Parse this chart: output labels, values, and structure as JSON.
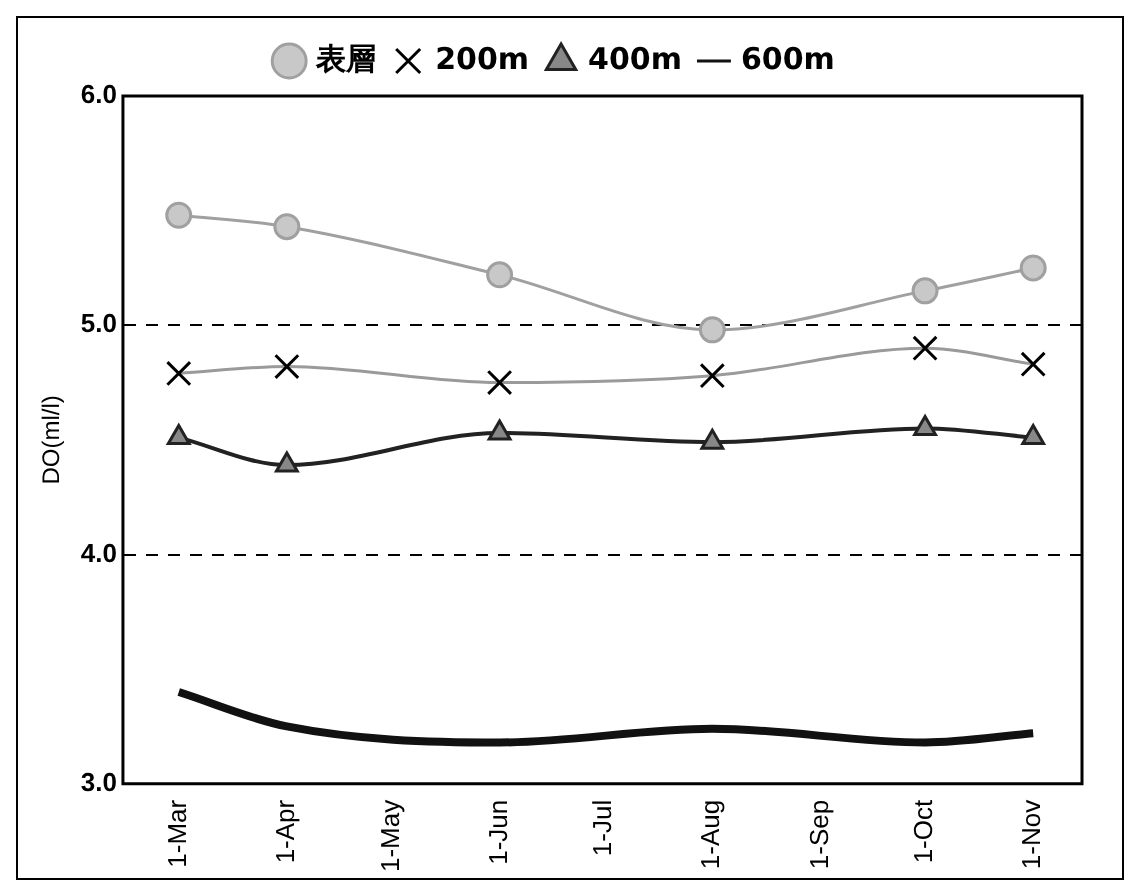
{
  "chart_data": {
    "type": "line",
    "ylabel": "DO(ml/l)",
    "x": [
      "--03-01",
      "--04-01",
      "--06-01",
      "--08-01",
      "--10-01",
      "--11-01"
    ],
    "series": [
      {
        "name": "表層",
        "color": "#a0a0a0",
        "marker": "circle",
        "values": [
          5.48,
          5.43,
          5.22,
          4.98,
          5.15,
          5.25
        ]
      },
      {
        "name": "200m",
        "color": "#9a9a9a",
        "marker": "cross",
        "values": [
          4.79,
          4.82,
          4.75,
          4.78,
          4.9,
          4.83
        ]
      },
      {
        "name": "400m",
        "color": "#222222",
        "marker": "triangle",
        "values": [
          4.51,
          4.39,
          4.53,
          4.49,
          4.55,
          4.51
        ]
      },
      {
        "name": "600m",
        "color": "#111111",
        "marker": "none",
        "values": [
          3.4,
          3.25,
          3.18,
          3.24,
          3.18,
          3.22
        ]
      }
    ],
    "xlim": [
      "--02-13",
      "--11-15"
    ],
    "xticks": [
      {
        "value": "--03-01",
        "label": "1-Mar"
      },
      {
        "value": "--04-01",
        "label": "1-Apr"
      },
      {
        "value": "--05-01",
        "label": "1-May"
      },
      {
        "value": "--06-01",
        "label": "1-Jun"
      },
      {
        "value": "--07-01",
        "label": "1-Jul"
      },
      {
        "value": "--08-01",
        "label": "1-Aug"
      },
      {
        "value": "--09-01",
        "label": "1-Sep"
      },
      {
        "value": "--10-01",
        "label": "1-Oct"
      },
      {
        "value": "--11-01",
        "label": "1-Nov"
      }
    ],
    "ylim": [
      3,
      6
    ],
    "yticks": [
      {
        "value": 3,
        "label": "3.0"
      },
      {
        "value": 4,
        "label": "4.0"
      },
      {
        "value": 5,
        "label": "5.0"
      },
      {
        "value": 6,
        "label": "6.0"
      }
    ],
    "grid": "y",
    "legend": "top"
  }
}
